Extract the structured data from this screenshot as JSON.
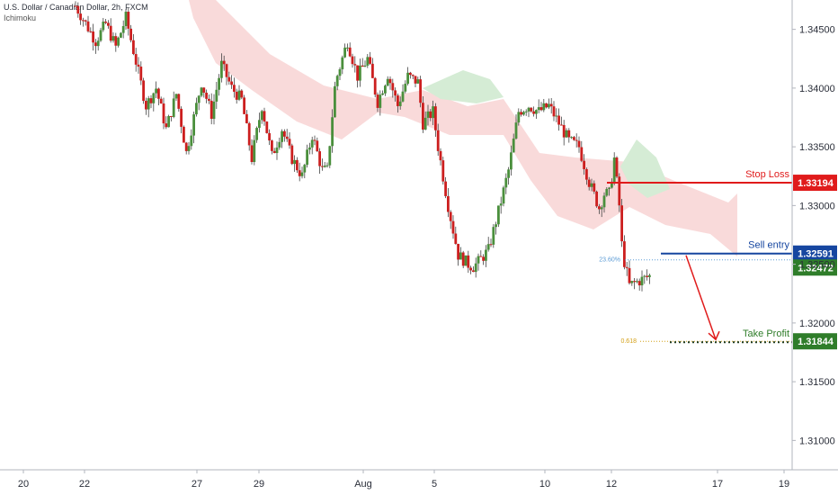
{
  "header": {
    "title": "U.S. Dollar / Canadian Dollar, 2h, FXCM",
    "indicator": "Ichimoku"
  },
  "colors": {
    "bull": "#4a8f3c",
    "bear": "#cc1f1f",
    "cloud_bear": "#f8d4d4",
    "cloud_bull": "#d5ecd5",
    "stop": "#e01b1b",
    "entry": "#1646a0",
    "last": "#2f7d2a",
    "target": "#2f7d2a",
    "fib": "#d4a017",
    "fib_entry": "#5b9bd5"
  },
  "chart_data": {
    "type": "candlestick",
    "ylim": [
      1.3075,
      1.3475
    ],
    "y_ticks": [
      "1.34500",
      "1.34000",
      "1.33500",
      "1.33000",
      "1.32500",
      "1.32000",
      "1.31500",
      "1.31000"
    ],
    "x_ticks": [
      "20",
      "22",
      "27",
      "29",
      "Aug",
      "5",
      "10",
      "12",
      "17",
      "19"
    ],
    "path": [
      [
        0.0,
        1.347
      ],
      [
        2.0,
        1.344
      ],
      [
        3.0,
        1.3455
      ],
      [
        4.0,
        1.3435
      ],
      [
        5.0,
        1.346
      ],
      [
        7.0,
        1.3385
      ],
      [
        8.0,
        1.34
      ],
      [
        9.0,
        1.3365
      ],
      [
        10.0,
        1.3395
      ],
      [
        11.0,
        1.3345
      ],
      [
        12.5,
        1.3405
      ],
      [
        13.5,
        1.3378
      ],
      [
        14.5,
        1.342
      ],
      [
        15.5,
        1.34
      ],
      [
        16.5,
        1.339
      ],
      [
        17.5,
        1.334
      ],
      [
        18.5,
        1.3385
      ],
      [
        19.5,
        1.3342
      ],
      [
        20.5,
        1.3365
      ],
      [
        21.5,
        1.334
      ],
      [
        22.5,
        1.3325
      ],
      [
        23.5,
        1.336
      ],
      [
        24.5,
        1.333
      ],
      [
        25.0,
        1.333
      ],
      [
        25.8,
        1.3405
      ],
      [
        27.0,
        1.344
      ],
      [
        28.0,
        1.341
      ],
      [
        29.0,
        1.3425
      ],
      [
        30.0,
        1.3388
      ],
      [
        31.0,
        1.3412
      ],
      [
        32.0,
        1.3385
      ],
      [
        33.0,
        1.341
      ],
      [
        34.0,
        1.3405
      ],
      [
        34.5,
        1.337
      ],
      [
        35.5,
        1.338
      ],
      [
        36.0,
        1.335
      ],
      [
        37.0,
        1.33
      ],
      [
        38.0,
        1.3258
      ],
      [
        39.0,
        1.325
      ],
      [
        39.5,
        1.3248
      ],
      [
        40.0,
        1.3252
      ],
      [
        41.0,
        1.3262
      ],
      [
        42.0,
        1.3295
      ],
      [
        43.0,
        1.333
      ],
      [
        44.0,
        1.338
      ],
      [
        45.0,
        1.3385
      ],
      [
        46.0,
        1.338
      ],
      [
        47.0,
        1.3385
      ],
      [
        48.0,
        1.337
      ],
      [
        49.0,
        1.3355
      ],
      [
        50.0,
        1.335
      ],
      [
        51.0,
        1.332
      ],
      [
        52.0,
        1.3298
      ],
      [
        52.5,
        1.331
      ],
      [
        53.0,
        1.331
      ],
      [
        53.5,
        1.334
      ],
      [
        54.0,
        1.33
      ],
      [
        54.3,
        1.326
      ],
      [
        55.0,
        1.3232
      ],
      [
        56.0,
        1.3236
      ],
      [
        57.0,
        1.324
      ]
    ],
    "levels": [
      {
        "name": "Stop Loss",
        "value": 1.33194,
        "label": "1.33194"
      },
      {
        "name": "Sell entry",
        "value": 1.32591,
        "label": "1.32591",
        "fib": "23.60%"
      },
      {
        "name": "Take Profit",
        "value": 1.31844,
        "label": "1.31844",
        "fib": "0.618"
      }
    ],
    "last_price": {
      "value": 1.32472,
      "label": "1.32472"
    }
  }
}
